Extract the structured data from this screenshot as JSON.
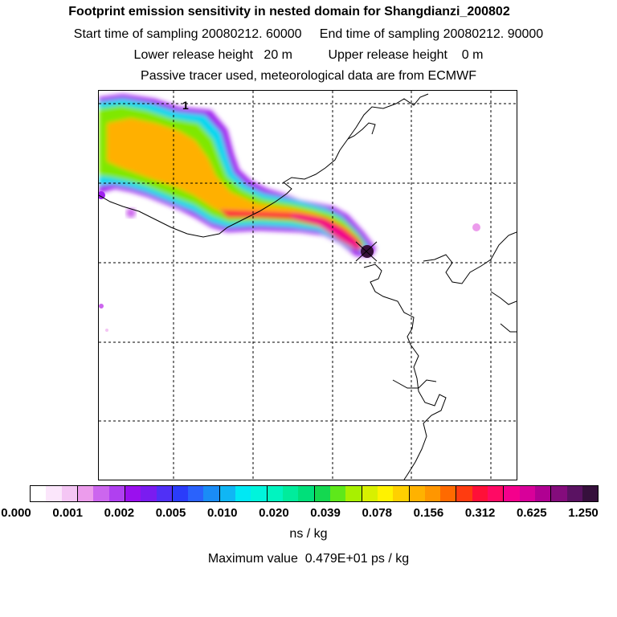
{
  "title": "Footprint emission sensitivity in nested domain for Shangdianzi_200802",
  "line1": "Start time of sampling 20080212. 60000     End time of sampling 20080212. 90000",
  "line2": "Lower release height   20 m          Upper release height    0 m",
  "line3": "Passive tracer used, meteorological data are from ECMWF",
  "map": {
    "marker_label": "1",
    "colors": {
      "grid": "#000000",
      "coast": "#000000"
    }
  },
  "colorbar": {
    "ticks": [
      "0.000",
      "0.001",
      "0.002",
      "0.005",
      "0.010",
      "0.020",
      "0.039",
      "0.078",
      "0.156",
      "0.312",
      "0.625",
      "1.250"
    ],
    "colors": [
      "#ffffff",
      "#fbe6fb",
      "#f4c6f4",
      "#ec9cec",
      "#cc66ee",
      "#b040f0",
      "#9a10ee",
      "#7a1cf0",
      "#5030f6",
      "#2a3cfa",
      "#2a62fc",
      "#1a8cf6",
      "#10b6f4",
      "#00e8f4",
      "#00f4dc",
      "#00f4c0",
      "#00ec9c",
      "#00e07a",
      "#14d850",
      "#5ee81a",
      "#a8f000",
      "#d8f000",
      "#fff200",
      "#ffd000",
      "#ffb200",
      "#ff9600",
      "#ff6a00",
      "#ff3c10",
      "#ff1038",
      "#ff0a64",
      "#f4008c",
      "#d8009a",
      "#b00092",
      "#840c7c",
      "#5a1262",
      "#36103c"
    ],
    "units": "ns / kg"
  },
  "max_value": "Maximum value  0.479E+01 ps / kg"
}
